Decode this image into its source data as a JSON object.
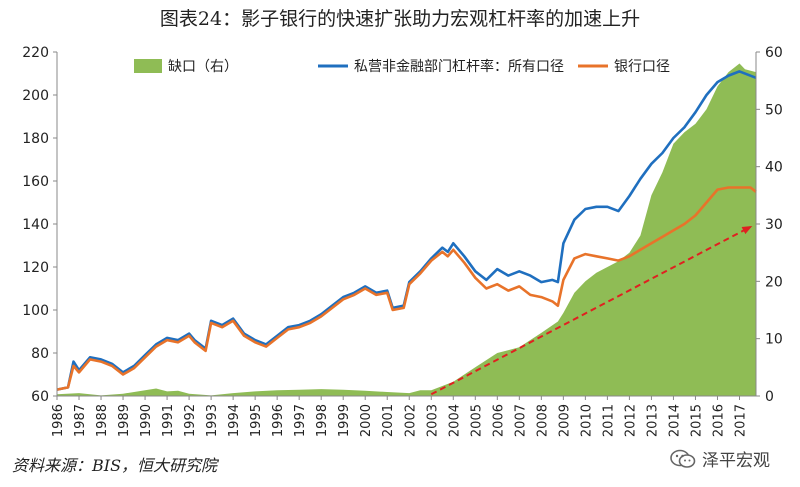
{
  "chart_data": {
    "type": "area+line",
    "title": "图表24：影子银行的快速扩张助力宏观杠杆率的加速上升",
    "x_categories": [
      "1986",
      "1987",
      "1988",
      "1989",
      "1990",
      "1991",
      "1992",
      "1993",
      "1994",
      "1995",
      "1996",
      "1997",
      "1998",
      "1999",
      "2000",
      "2001",
      "2002",
      "2003",
      "2004",
      "2005",
      "2006",
      "2007",
      "2008",
      "2009",
      "2010",
      "2011",
      "2012",
      "2013",
      "2014",
      "2015",
      "2016",
      "2017"
    ],
    "x_range": [
      1986,
      2017.75
    ],
    "y_left": {
      "range": [
        60,
        220
      ],
      "ticks": [
        60,
        80,
        100,
        120,
        140,
        160,
        180,
        200,
        220
      ]
    },
    "y_right": {
      "range": [
        0,
        60
      ],
      "ticks": [
        0,
        10,
        20,
        30,
        40,
        50,
        60
      ]
    },
    "grid": false,
    "legend_position": "top",
    "series": [
      {
        "name": "缺口（右）",
        "kind": "area",
        "axis": "right",
        "color": "#8fbc55",
        "points": [
          [
            1986,
            0.3
          ],
          [
            1987,
            0.5
          ],
          [
            1988,
            0.1
          ],
          [
            1989,
            0.4
          ],
          [
            1990,
            1.0
          ],
          [
            1990.5,
            1.3
          ],
          [
            1991,
            0.8
          ],
          [
            1991.5,
            0.9
          ],
          [
            1992,
            0.4
          ],
          [
            1993,
            0.1
          ],
          [
            1994,
            0.5
          ],
          [
            1995,
            0.8
          ],
          [
            1996,
            1.0
          ],
          [
            1997,
            1.1
          ],
          [
            1998,
            1.2
          ],
          [
            1999,
            1.1
          ],
          [
            2000,
            0.9
          ],
          [
            2001,
            0.7
          ],
          [
            2002,
            0.5
          ],
          [
            2002.5,
            1.0
          ],
          [
            2003,
            1.0
          ],
          [
            2004,
            2.5
          ],
          [
            2005,
            5.0
          ],
          [
            2006,
            7.5
          ],
          [
            2007,
            8.5
          ],
          [
            2008,
            11.0
          ],
          [
            2008.75,
            13.0
          ],
          [
            2009,
            14.5
          ],
          [
            2009.5,
            18.0
          ],
          [
            2010,
            20.0
          ],
          [
            2010.5,
            21.5
          ],
          [
            2011,
            22.5
          ],
          [
            2011.5,
            23.5
          ],
          [
            2012,
            25.0
          ],
          [
            2012.5,
            28.0
          ],
          [
            2013,
            35.0
          ],
          [
            2013.5,
            39.0
          ],
          [
            2014,
            44.0
          ],
          [
            2014.5,
            46.0
          ],
          [
            2015,
            47.5
          ],
          [
            2015.5,
            50.0
          ],
          [
            2016,
            54.0
          ],
          [
            2016.5,
            56.5
          ],
          [
            2017,
            58.0
          ],
          [
            2017.25,
            57.0
          ],
          [
            2017.75,
            56.5
          ]
        ]
      },
      {
        "name": "私营非金融部门杠杆率：所有口径",
        "kind": "line",
        "axis": "left",
        "color": "#1f6fbf",
        "points": [
          [
            1986,
            63
          ],
          [
            1986.5,
            64
          ],
          [
            1986.75,
            76
          ],
          [
            1987,
            72
          ],
          [
            1987.5,
            78
          ],
          [
            1988,
            77
          ],
          [
            1988.5,
            75
          ],
          [
            1989,
            71
          ],
          [
            1989.5,
            74
          ],
          [
            1990,
            79
          ],
          [
            1990.5,
            84
          ],
          [
            1991,
            87
          ],
          [
            1991.5,
            86
          ],
          [
            1992,
            89
          ],
          [
            1992.25,
            86
          ],
          [
            1992.75,
            82
          ],
          [
            1993,
            95
          ],
          [
            1993.5,
            93
          ],
          [
            1994,
            96
          ],
          [
            1994.5,
            89
          ],
          [
            1995,
            86
          ],
          [
            1995.5,
            84
          ],
          [
            1996,
            88
          ],
          [
            1996.5,
            92
          ],
          [
            1997,
            93
          ],
          [
            1997.5,
            95
          ],
          [
            1998,
            98
          ],
          [
            1998.5,
            102
          ],
          [
            1999,
            106
          ],
          [
            1999.5,
            108
          ],
          [
            2000,
            111
          ],
          [
            2000.5,
            108
          ],
          [
            2001,
            109
          ],
          [
            2001.25,
            101
          ],
          [
            2001.75,
            102
          ],
          [
            2002,
            113
          ],
          [
            2002.5,
            118
          ],
          [
            2003,
            124
          ],
          [
            2003.5,
            129
          ],
          [
            2003.75,
            127
          ],
          [
            2004,
            131
          ],
          [
            2004.5,
            125
          ],
          [
            2005,
            118
          ],
          [
            2005.5,
            114
          ],
          [
            2006,
            119
          ],
          [
            2006.5,
            116
          ],
          [
            2007,
            118
          ],
          [
            2007.5,
            116
          ],
          [
            2008,
            113
          ],
          [
            2008.5,
            114
          ],
          [
            2008.75,
            113
          ],
          [
            2009,
            131
          ],
          [
            2009.5,
            142
          ],
          [
            2010,
            147
          ],
          [
            2010.5,
            148
          ],
          [
            2011,
            148
          ],
          [
            2011.5,
            146
          ],
          [
            2012,
            153
          ],
          [
            2012.5,
            161
          ],
          [
            2013,
            168
          ],
          [
            2013.5,
            173
          ],
          [
            2014,
            180
          ],
          [
            2014.5,
            185
          ],
          [
            2015,
            192
          ],
          [
            2015.5,
            200
          ],
          [
            2016,
            206
          ],
          [
            2016.5,
            209
          ],
          [
            2017,
            211
          ],
          [
            2017.75,
            208
          ]
        ]
      },
      {
        "name": "银行口径",
        "kind": "line",
        "axis": "left",
        "color": "#e8732a",
        "points": [
          [
            1986,
            63
          ],
          [
            1986.5,
            64
          ],
          [
            1986.75,
            74
          ],
          [
            1987,
            71
          ],
          [
            1987.5,
            77
          ],
          [
            1988,
            76
          ],
          [
            1988.5,
            74
          ],
          [
            1989,
            70
          ],
          [
            1989.5,
            73
          ],
          [
            1990,
            78
          ],
          [
            1990.5,
            83
          ],
          [
            1991,
            86
          ],
          [
            1991.5,
            85
          ],
          [
            1992,
            88
          ],
          [
            1992.25,
            85
          ],
          [
            1992.75,
            81
          ],
          [
            1993,
            94
          ],
          [
            1993.5,
            92
          ],
          [
            1994,
            95
          ],
          [
            1994.5,
            88
          ],
          [
            1995,
            85
          ],
          [
            1995.5,
            83
          ],
          [
            1996,
            87
          ],
          [
            1996.5,
            91
          ],
          [
            1997,
            92
          ],
          [
            1997.5,
            94
          ],
          [
            1998,
            97
          ],
          [
            1998.5,
            101
          ],
          [
            1999,
            105
          ],
          [
            1999.5,
            107
          ],
          [
            2000,
            110
          ],
          [
            2000.5,
            107
          ],
          [
            2001,
            108
          ],
          [
            2001.25,
            100
          ],
          [
            2001.75,
            101
          ],
          [
            2002,
            112
          ],
          [
            2002.5,
            117
          ],
          [
            2003,
            123
          ],
          [
            2003.5,
            127
          ],
          [
            2003.75,
            125
          ],
          [
            2004,
            128
          ],
          [
            2004.5,
            122
          ],
          [
            2005,
            115
          ],
          [
            2005.5,
            110
          ],
          [
            2006,
            112
          ],
          [
            2006.5,
            109
          ],
          [
            2007,
            111
          ],
          [
            2007.5,
            107
          ],
          [
            2008,
            106
          ],
          [
            2008.5,
            104
          ],
          [
            2008.75,
            102
          ],
          [
            2009,
            114
          ],
          [
            2009.5,
            124
          ],
          [
            2010,
            126
          ],
          [
            2010.5,
            125
          ],
          [
            2011,
            124
          ],
          [
            2011.5,
            123
          ],
          [
            2012,
            125
          ],
          [
            2012.5,
            128
          ],
          [
            2013,
            131
          ],
          [
            2013.5,
            134
          ],
          [
            2014,
            137
          ],
          [
            2014.5,
            140
          ],
          [
            2015,
            144
          ],
          [
            2015.5,
            150
          ],
          [
            2016,
            156
          ],
          [
            2016.5,
            157
          ],
          [
            2017,
            157
          ],
          [
            2017.5,
            157
          ],
          [
            2017.75,
            155
          ]
        ]
      }
    ],
    "annotations": [
      {
        "kind": "arrow",
        "style": "dashed",
        "color": "#e02020",
        "axis": "right",
        "from": [
          2003,
          0.3
        ],
        "to": [
          2017.5,
          29.5
        ]
      }
    ],
    "source": "资料来源：BIS，恒大研究院",
    "watermark": "泽平宏观"
  }
}
